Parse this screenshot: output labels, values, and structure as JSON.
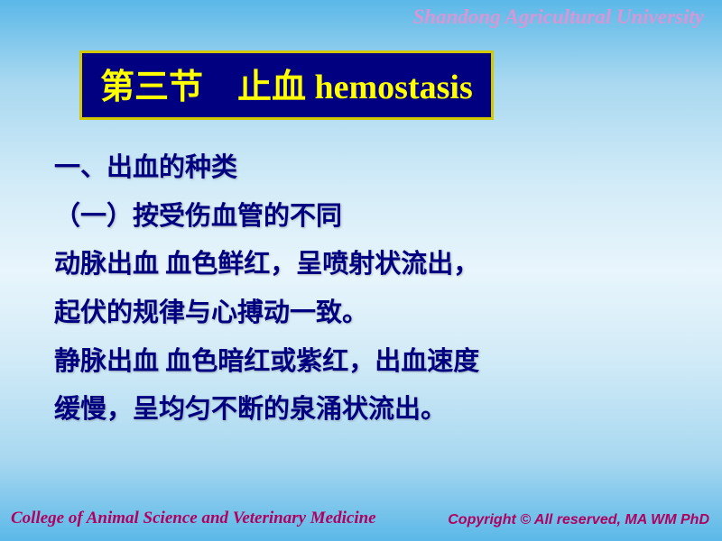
{
  "header": "Shandong Agricultural University",
  "title": "第三节　止血 hemostasis",
  "lines": {
    "l1": "一、出血的种类",
    "l2": "（一）按受伤血管的不同",
    "l3": "动脉出血 血色鲜红，呈喷射状流出，",
    "l4": "起伏的规律与心搏动一致。",
    "l5": "静脉出血 血色暗红或紫红，出血速度",
    "l6": "缓慢，呈均匀不断的泉涌状流出。"
  },
  "footer": {
    "left": "College of Animal Science and Veterinary Medicine",
    "right": "Copyright © All reserved, MA WM  PhD"
  },
  "colors": {
    "title_bg": "#000080",
    "title_border": "#d4c800",
    "title_text": "#ffff00",
    "body_text": "#000080",
    "header_text": "#d896d6",
    "footer_text": "#b00060"
  },
  "typography": {
    "title_fontsize": 38,
    "body_fontsize": 29,
    "header_fontsize": 23,
    "footer_left_fontsize": 19,
    "footer_right_fontsize": 16
  }
}
